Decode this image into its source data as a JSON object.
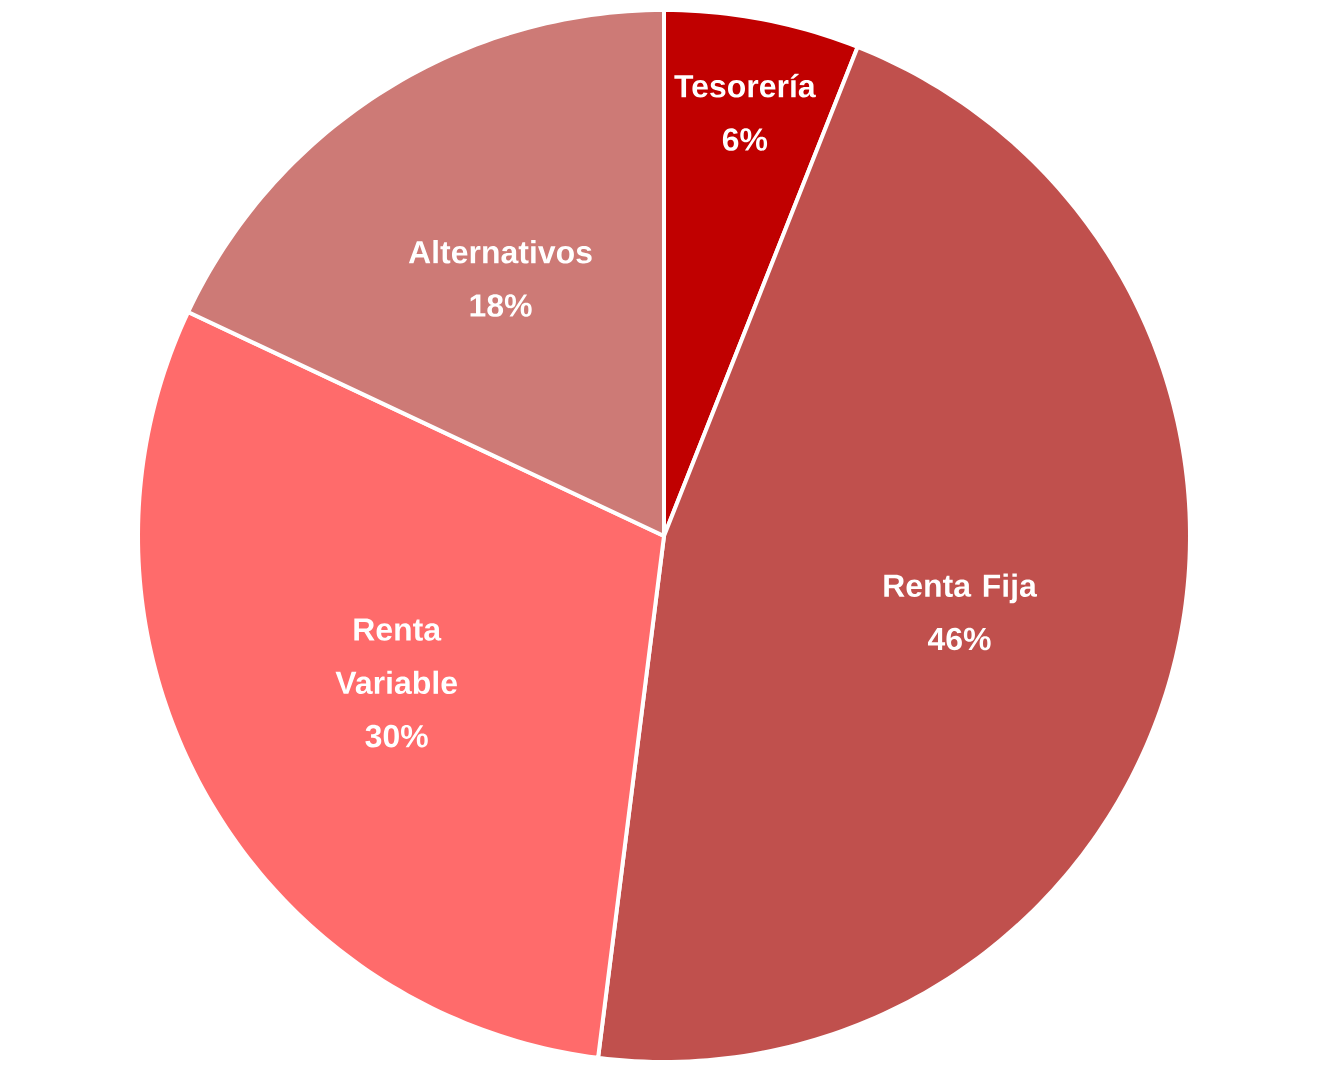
{
  "chart_data": {
    "type": "pie",
    "categories": [
      "Tesorería",
      "Renta Fija",
      "Renta Variable",
      "Alternativos"
    ],
    "values": [
      6,
      46,
      30,
      18
    ],
    "value_labels": [
      "6%",
      "46%",
      "30%",
      "18%"
    ],
    "colors": [
      "#c00000",
      "#c0504d",
      "#ff6b6b",
      "#cd7a76"
    ]
  }
}
